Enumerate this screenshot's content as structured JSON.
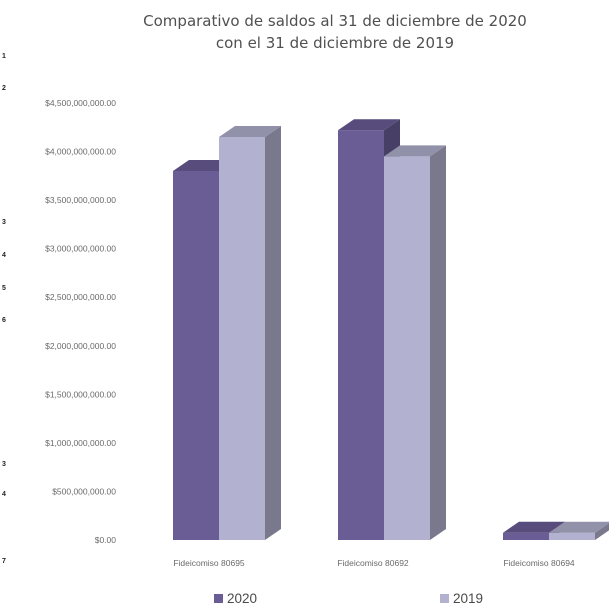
{
  "chart_data": {
    "type": "bar",
    "title": [
      "Comparativo de saldos al 31 de diciembre de 2020",
      "con el 31 de diciembre de 2019"
    ],
    "xlabel": "",
    "ylabel": "",
    "categories": [
      "Fideicomiso 80695",
      "Fideicomiso 80692",
      "Fideicomiso 80694"
    ],
    "series": [
      {
        "name": "2020",
        "values": [
          3800000000,
          4220000000,
          75000000
        ],
        "color": "#6a5d96"
      },
      {
        "name": "2019",
        "values": [
          4150000000,
          3950000000,
          75000000
        ],
        "color": "#b2b1cf"
      }
    ],
    "ylim": [
      0,
      4500000000
    ],
    "yticks": [
      {
        "value": 0,
        "label": "$0.00"
      },
      {
        "value": 500000000,
        "label": "$500,000,000.00"
      },
      {
        "value": 1000000000,
        "label": "$1,000,000,000.00"
      },
      {
        "value": 1500000000,
        "label": "$1,500,000,000.00"
      },
      {
        "value": 2000000000,
        "label": "$2,000,000,000.00"
      },
      {
        "value": 2500000000,
        "label": "$2,500,000,000.00"
      },
      {
        "value": 3000000000,
        "label": "$3,000,000,000.00"
      },
      {
        "value": 3500000000,
        "label": "$3,500,000,000.00"
      },
      {
        "value": 4000000000,
        "label": "$4,000,000,000.00"
      },
      {
        "value": 4500000000,
        "label": "$4,500,000,000.00"
      }
    ],
    "grid": false,
    "legend": "bottom",
    "style": "3d-columns"
  },
  "margin_marks": [
    "1",
    "2",
    "3",
    "4",
    "5",
    "6",
    "3",
    "4",
    "7"
  ]
}
